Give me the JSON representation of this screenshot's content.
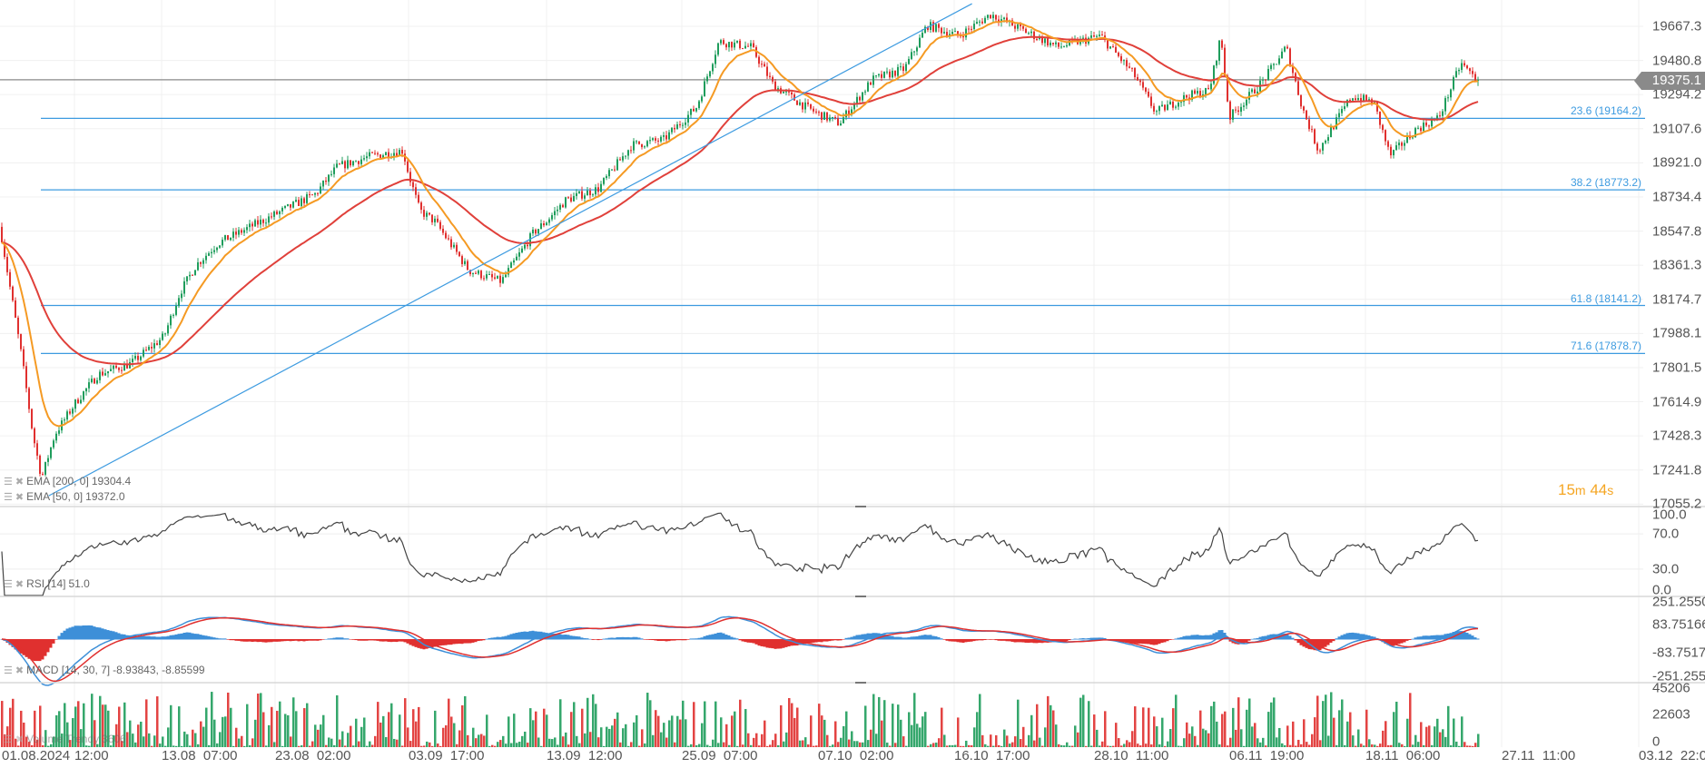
{
  "colors": {
    "up": "#1f9d5c",
    "down": "#e0302f",
    "ema200": "#e0403a",
    "ema50": "#f59a23",
    "fib": "#3d9be0",
    "trend": "#3d9be0",
    "rsi": "#444444",
    "macd": "#3d8fd8",
    "signal": "#e0302f",
    "price_tag": "#8a8a8a",
    "timer": "#f5a623"
  },
  "chart_data": [
    {
      "type": "candlestick",
      "pane": "price",
      "y_axis_ticks": [
        "19667.3",
        "19480.8",
        "19294.2",
        "19107.6",
        "18921.0",
        "18734.4",
        "18547.8",
        "18361.3",
        "18174.7",
        "17988.1",
        "17801.5",
        "17614.9",
        "17428.3",
        "17241.8",
        "17055.2"
      ],
      "ylim": [
        17055.2,
        19667.3
      ],
      "x_axis_ticks": [
        "01.08.2024",
        "12:00",
        "13.08  07:00",
        "23.08  02:00",
        "03.09  17:00",
        "13.09  12:00",
        "25.09  07:00",
        "07.10  02:00",
        "16.10  17:00",
        "28.10  11:00",
        "06.11  19:00",
        "18.11  06:00",
        "27.11  11:00",
        "03.12  22:00"
      ],
      "grid": true,
      "current_price": "19375.1",
      "series": [
        {
          "x": "2024-08-01T00:00",
          "close": 18571
        },
        {
          "x": "2024-08-01T20:00",
          "close": 18210
        },
        {
          "x": "2024-08-02T16:00",
          "close": 17853
        },
        {
          "x": "2024-08-03T12:00",
          "close": 17436
        },
        {
          "x": "2024-08-04T04:00",
          "close": 17197
        },
        {
          "x": "2024-08-05T04:00",
          "close": 17436
        },
        {
          "x": "2024-08-06T19:00",
          "close": 17615
        },
        {
          "x": "2024-08-08T11:00",
          "close": 17764
        },
        {
          "x": "2024-08-10T23:00",
          "close": 17824
        },
        {
          "x": "2024-08-13T12:00",
          "close": 17973
        },
        {
          "x": "2024-08-14T21:00",
          "close": 18212
        },
        {
          "x": "2024-08-16T06:00",
          "close": 18361
        },
        {
          "x": "2024-08-18T03:00",
          "close": 18480
        },
        {
          "x": "2024-08-20T22:00",
          "close": 18570
        },
        {
          "x": "2024-08-23T18:00",
          "close": 18660
        },
        {
          "x": "2024-08-26T14:00",
          "close": 18750
        },
        {
          "x": "2024-08-28T12:00",
          "close": 18899
        },
        {
          "x": "2024-08-31T10:00",
          "close": 18958
        },
        {
          "x": "2024-09-03T05:00",
          "close": 18988
        },
        {
          "x": "2024-09-04T12:00",
          "close": 18660
        },
        {
          "x": "2024-09-05T14:00",
          "close": 18600
        },
        {
          "x": "2024-09-08T00:00",
          "close": 18332
        },
        {
          "x": "2024-09-10T07:00",
          "close": 18272
        },
        {
          "x": "2024-09-12T14:00",
          "close": 18540
        },
        {
          "x": "2024-09-15T05:00",
          "close": 18719
        },
        {
          "x": "2024-09-18T00:00",
          "close": 18779
        },
        {
          "x": "2024-09-20T22:00",
          "close": 19018
        },
        {
          "x": "2024-09-23T17:00",
          "close": 19048
        },
        {
          "x": "2024-09-26T14:00",
          "close": 19227
        },
        {
          "x": "2024-09-28T12:00",
          "close": 19584
        },
        {
          "x": "2024-10-01T07:00",
          "close": 19554
        },
        {
          "x": "2024-10-03T05:00",
          "close": 19346
        },
        {
          "x": "2024-10-06T00:00",
          "close": 19227
        },
        {
          "x": "2024-10-08T14:00",
          "close": 19137
        },
        {
          "x": "2024-10-10T22:00",
          "close": 19375
        },
        {
          "x": "2024-10-13T05:00",
          "close": 19435
        },
        {
          "x": "2024-10-14T19:00",
          "close": 19673
        },
        {
          "x": "2024-10-17T02:00",
          "close": 19614
        },
        {
          "x": "2024-10-19T19:00",
          "close": 19733
        },
        {
          "x": "2024-10-22T14:00",
          "close": 19643
        },
        {
          "x": "2024-10-25T10:00",
          "close": 19554
        },
        {
          "x": "2024-10-28T22:00",
          "close": 19614
        },
        {
          "x": "2024-10-31T05:00",
          "close": 19405
        },
        {
          "x": "2024-11-01T17:00",
          "close": 19197
        },
        {
          "x": "2024-11-03T22:00",
          "close": 19286
        },
        {
          "x": "2024-11-05T10:00",
          "close": 19316
        },
        {
          "x": "2024-11-06T05:00",
          "close": 19614
        },
        {
          "x": "2024-11-06T19:00",
          "close": 19167
        },
        {
          "x": "2024-11-09T17:00",
          "close": 19375
        },
        {
          "x": "2024-11-11T14:00",
          "close": 19554
        },
        {
          "x": "2024-11-12T22:00",
          "close": 19226
        },
        {
          "x": "2024-11-14T07:00",
          "close": 18988
        },
        {
          "x": "2024-11-17T02:00",
          "close": 19286
        },
        {
          "x": "2024-11-18T19:00",
          "close": 19256
        },
        {
          "x": "2024-11-19T22:00",
          "close": 18958
        },
        {
          "x": "2024-11-21T17:00",
          "close": 19107
        },
        {
          "x": "2024-11-23T05:00",
          "close": 19167
        },
        {
          "x": "2024-11-24T17:00",
          "close": 19465
        },
        {
          "x": "2024-11-25T19:00",
          "close": 19375
        }
      ],
      "indicators": [
        {
          "name": "EMA [200, 0]",
          "value": "19304.4",
          "period": 200
        },
        {
          "name": "EMA [50, 0]",
          "value": "19372.0",
          "period": 50
        }
      ],
      "fibonacci": [
        {
          "level": "23.6",
          "price": 19164.2,
          "label": "23.6 (19164.2)"
        },
        {
          "level": "38.2",
          "price": 18773.2,
          "label": "38.2 (18773.2)"
        },
        {
          "level": "61.8",
          "price": 18141.2,
          "label": "61.8 (18141.2)"
        },
        {
          "level": "71.6",
          "price": 17878.7,
          "label": "71.6 (17878.7)"
        }
      ],
      "trendline": {
        "from": {
          "x": "2024-08-04T17:00",
          "price": 17101
        },
        "to": {
          "x": "2024-10-18T05:00",
          "price": 19791
        }
      },
      "countdown": {
        "minutes": "15",
        "m": "m",
        "seconds": "44",
        "s": "s"
      }
    },
    {
      "type": "line",
      "pane": "rsi",
      "label": "RSI [14]",
      "value": "51.0",
      "y_axis_ticks": [
        "100.0",
        "70.0",
        "30.0",
        "0.0"
      ],
      "ylim": [
        0,
        100
      ]
    },
    {
      "type": "line",
      "pane": "macd",
      "label": "MACD [14, 30, 7]",
      "value": "-8.93843,  -8.85599",
      "y_axis_ticks": [
        "251.2550",
        "83.75166",
        "-83.7517",
        "-251.255"
      ],
      "ylim": [
        -251.255,
        251.255
      ]
    },
    {
      "type": "bar",
      "pane": "volume",
      "label": "Volume Trendy",
      "value": "3606",
      "y_axis_ticks": [
        "45206",
        "22603",
        "0"
      ],
      "ylim": [
        0,
        45206
      ]
    }
  ]
}
